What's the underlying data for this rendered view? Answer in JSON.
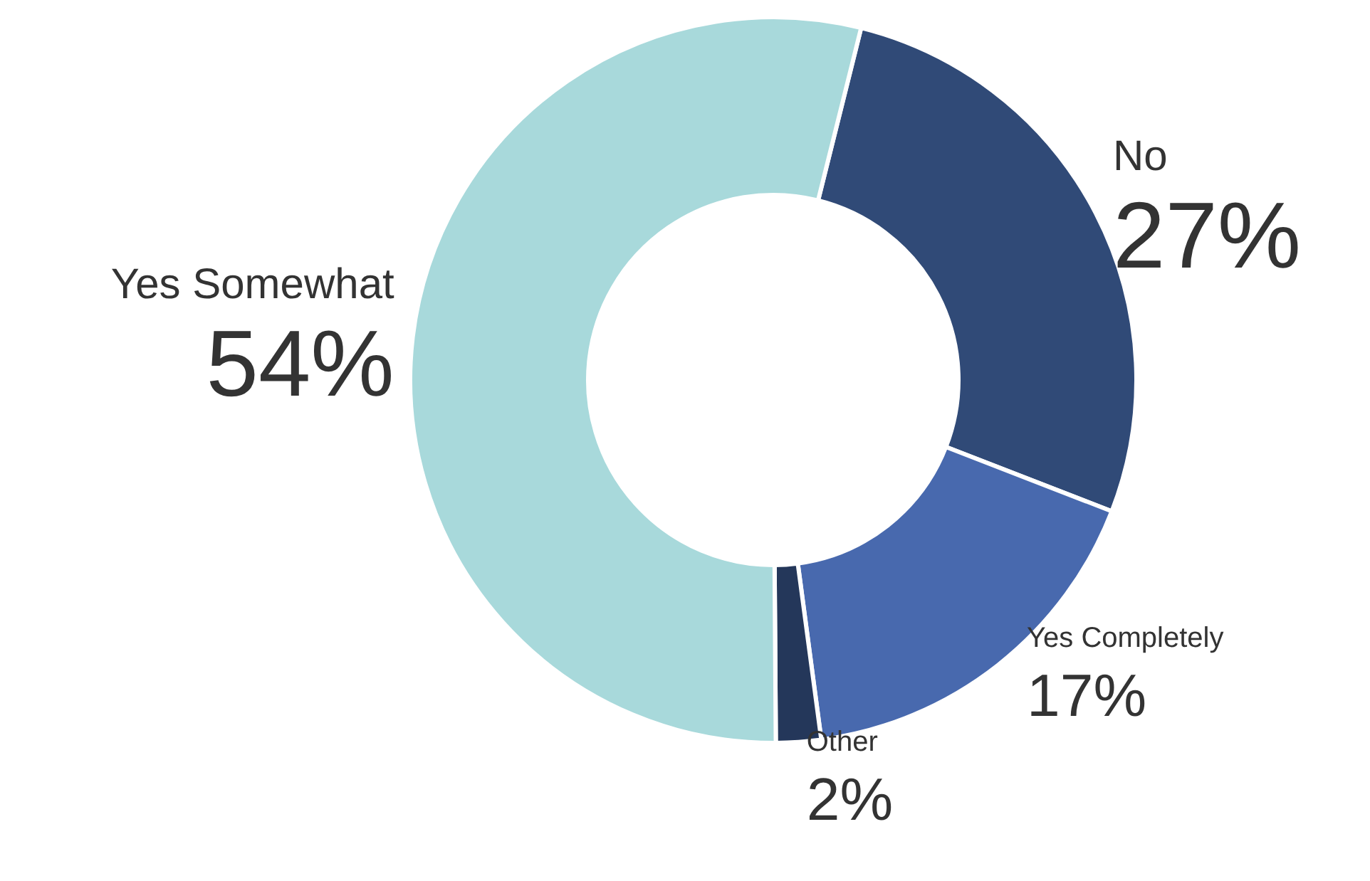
{
  "chart_data": {
    "type": "donut",
    "categories": [
      "No",
      "Yes Completely",
      "Other",
      "Yes Somewhat"
    ],
    "values": [
      27,
      17,
      2,
      54
    ],
    "value_labels": [
      "27%",
      "17%",
      "2%",
      "54%"
    ],
    "colors": [
      "#304a77",
      "#4869ae",
      "#24375a",
      "#a8d9db"
    ],
    "legend": false
  }
}
